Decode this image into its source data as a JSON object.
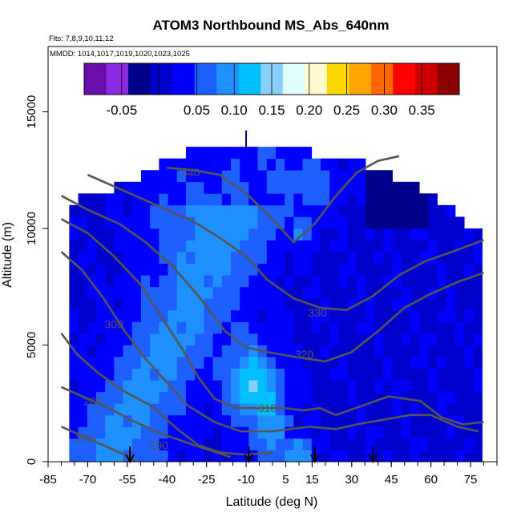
{
  "chart_data": {
    "type": "heatmap",
    "title": "ATOM3 Northbound MS_Abs_640nm",
    "flights_label": "Flts: 7,8,9,10,11,12",
    "dates_label": "MMDD: 1014,1017,1019,1020,1023,1025",
    "xlabel": "Latitude (deg N)",
    "ylabel": "Altitude (m)",
    "xlim": [
      -85,
      85
    ],
    "ylim": [
      0,
      17800
    ],
    "xticks": [
      -85,
      -70,
      -55,
      -40,
      -25,
      -10,
      5,
      15,
      30,
      45,
      60,
      75
    ],
    "yticks": [
      0,
      5000,
      10000,
      15000
    ],
    "colorbar": {
      "range": [
        -0.1,
        0.4
      ],
      "ticks": [
        -0.05,
        0.05,
        0.1,
        0.15,
        0.2,
        0.25,
        0.3,
        0.35
      ],
      "tick_labels": [
        "-0.05",
        "0.05",
        "0.10",
        "0.15",
        "0.20",
        "0.25",
        "0.30",
        "0.35"
      ],
      "colors": [
        "#6a0dad",
        "#8a2be2",
        "#00008b",
        "#0000cd",
        "#0000ff",
        "#1e5fff",
        "#1e90ff",
        "#00bfff",
        "#87cefa",
        "#e0ffff",
        "#fffacd",
        "#ffd700",
        "#ffa500",
        "#ff6600",
        "#ff0000",
        "#cc0000",
        "#8b0000"
      ]
    },
    "theta_contours_K": [
      270,
      280,
      290,
      300,
      310,
      320,
      330,
      340
    ],
    "contour_color": "#555555",
    "profile_arrows_lat": [
      -54,
      -9,
      16,
      38
    ],
    "grid": false
  }
}
